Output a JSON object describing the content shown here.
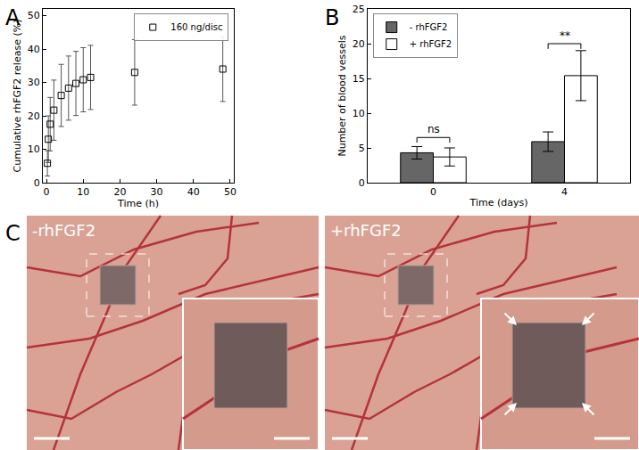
{
  "chart_data": [
    {
      "type": "scatter",
      "panel": "A",
      "x": [
        0.25,
        0.5,
        1,
        2,
        4,
        6,
        8,
        10,
        12,
        24,
        48
      ],
      "series": [
        {
          "name": "160 ng/disc",
          "color": "#000000",
          "marker": "square-open",
          "values": [
            5.8,
            13.0,
            17.5,
            21.7,
            26.1,
            28.3,
            29.7,
            30.8,
            31.5,
            33.0,
            34.0
          ],
          "errors": [
            3.8,
            7.0,
            8.0,
            9.0,
            9.3,
            9.6,
            9.6,
            9.6,
            9.6,
            9.8,
            9.7
          ]
        }
      ],
      "x_label": "Time (h)",
      "y_label": "Cumulative rhFGF2 release (%)",
      "xlim": [
        -1,
        51
      ],
      "xticks": [
        0,
        10,
        20,
        30,
        40,
        50
      ],
      "ylim": [
        0,
        52
      ],
      "yticks": [
        0,
        10,
        20,
        30,
        40,
        50
      ],
      "legend": "top right",
      "grid": false
    },
    {
      "type": "bar",
      "panel": "B",
      "categories": [
        "0",
        "4"
      ],
      "series": [
        {
          "name": "- rhFGF2",
          "color": "#666666",
          "values": [
            4.3,
            5.9
          ],
          "errors": [
            0.9,
            1.4
          ]
        },
        {
          "name": "+ rhFGF2",
          "color": "#ffffff",
          "values": [
            3.7,
            15.4
          ],
          "errors": [
            1.3,
            3.6
          ]
        }
      ],
      "x_label": "Time (days)",
      "y_label": "Number of blood vessels",
      "ylim": [
        0,
        25
      ],
      "yticks": [
        0,
        5,
        10,
        15,
        20,
        25
      ],
      "legend": "top left",
      "grid": false,
      "annotations": [
        {
          "category": "0",
          "label": "ns",
          "y": 6.5
        },
        {
          "category": "4",
          "label": "**",
          "y": 20
        }
      ]
    },
    {
      "type": "image",
      "panel": "C",
      "panels": [
        {
          "label": "-rhFGF2"
        },
        {
          "label": "+rhFGF2"
        }
      ]
    }
  ]
}
